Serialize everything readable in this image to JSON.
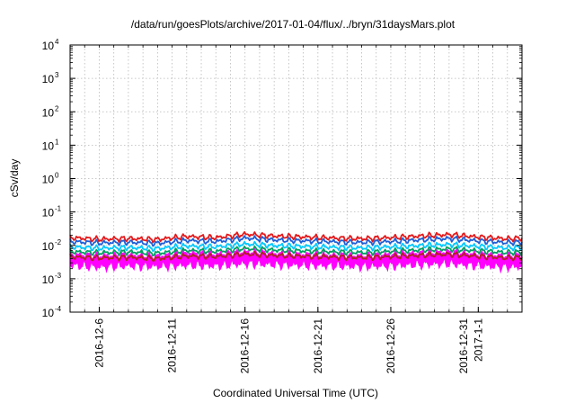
{
  "chart_data": {
    "type": "line",
    "title": "/data/run/goesPlots/archive/2017-01-04/flux/../bryn/31daysMars.plot",
    "xlabel": "Coordinated Universal Time (UTC)",
    "ylabel": "cSv/day",
    "yscale": "log",
    "ylim": [
      0.0001,
      10000
    ],
    "xlim": [
      "2016-12-04T00:00",
      "2017-01-04T00:00"
    ],
    "y_ticks": [
      {
        "base": "10",
        "exp": "-4"
      },
      {
        "base": "10",
        "exp": "-3"
      },
      {
        "base": "10",
        "exp": "-2"
      },
      {
        "base": "10",
        "exp": "-1"
      },
      {
        "base": "10",
        "exp": "0"
      },
      {
        "base": "10",
        "exp": "1"
      },
      {
        "base": "10",
        "exp": "2"
      },
      {
        "base": "10",
        "exp": "3"
      },
      {
        "base": "10",
        "exp": "4"
      }
    ],
    "x_ticks": [
      {
        "label": "2016-12-6",
        "date": "2016-12-06"
      },
      {
        "label": "2016-12-11",
        "date": "2016-12-11"
      },
      {
        "label": "2016-12-16",
        "date": "2016-12-16"
      },
      {
        "label": "2016-12-21",
        "date": "2016-12-21"
      },
      {
        "label": "2016-12-26",
        "date": "2016-12-26"
      },
      {
        "label": "2016-12-31",
        "date": "2016-12-31"
      },
      {
        "label": "2017-1-1",
        "date": "2017-01-01"
      }
    ],
    "grid": true,
    "legend": "none",
    "series": [
      {
        "color": "#ff00ff",
        "fill_band": true,
        "x": [
          "2016-12-04",
          "2016-12-06",
          "2016-12-08",
          "2016-12-10",
          "2016-12-12",
          "2016-12-14",
          "2016-12-16",
          "2016-12-18",
          "2016-12-20",
          "2016-12-22",
          "2016-12-24",
          "2016-12-26",
          "2016-12-28",
          "2016-12-30",
          "2017-01-01",
          "2017-01-03",
          "2017-01-04"
        ],
        "low": [
          0.0025,
          0.0022,
          0.0024,
          0.0023,
          0.0025,
          0.0024,
          0.0028,
          0.0026,
          0.0025,
          0.0024,
          0.0023,
          0.0024,
          0.0026,
          0.0028,
          0.0024,
          0.0022,
          0.0023
        ],
        "high": [
          0.0055,
          0.005,
          0.0052,
          0.0048,
          0.006,
          0.0055,
          0.0065,
          0.0058,
          0.0055,
          0.0052,
          0.005,
          0.0055,
          0.006,
          0.0065,
          0.0055,
          0.005,
          0.0052
        ]
      },
      {
        "color": "#b22222",
        "x": [
          "2016-12-04",
          "2016-12-06",
          "2016-12-08",
          "2016-12-10",
          "2016-12-12",
          "2016-12-14",
          "2016-12-16",
          "2016-12-18",
          "2016-12-20",
          "2016-12-22",
          "2016-12-24",
          "2016-12-26",
          "2016-12-28",
          "2016-12-30",
          "2017-01-01",
          "2017-01-03",
          "2017-01-04"
        ],
        "values": [
          0.0045,
          0.0042,
          0.0044,
          0.004,
          0.0048,
          0.0046,
          0.0055,
          0.005,
          0.0047,
          0.0045,
          0.0043,
          0.0046,
          0.005,
          0.0054,
          0.0047,
          0.0042,
          0.0044
        ]
      },
      {
        "color": "#00a060",
        "x": [
          "2016-12-04",
          "2016-12-06",
          "2016-12-08",
          "2016-12-10",
          "2016-12-12",
          "2016-12-14",
          "2016-12-16",
          "2016-12-18",
          "2016-12-20",
          "2016-12-22",
          "2016-12-24",
          "2016-12-26",
          "2016-12-28",
          "2016-12-30",
          "2017-01-01",
          "2017-01-03",
          "2017-01-04"
        ],
        "values": [
          0.0065,
          0.006,
          0.0063,
          0.0058,
          0.007,
          0.0066,
          0.008,
          0.0072,
          0.0068,
          0.0064,
          0.0061,
          0.0066,
          0.0072,
          0.0078,
          0.0068,
          0.0061,
          0.0063
        ]
      },
      {
        "color": "#00c8ff",
        "x": [
          "2016-12-04",
          "2016-12-06",
          "2016-12-08",
          "2016-12-10",
          "2016-12-12",
          "2016-12-14",
          "2016-12-16",
          "2016-12-18",
          "2016-12-20",
          "2016-12-22",
          "2016-12-24",
          "2016-12-26",
          "2016-12-28",
          "2016-12-30",
          "2017-01-01",
          "2017-01-03",
          "2017-01-04"
        ],
        "values": [
          0.009,
          0.0082,
          0.0086,
          0.008,
          0.0096,
          0.009,
          0.011,
          0.0098,
          0.0093,
          0.0088,
          0.0084,
          0.009,
          0.0098,
          0.0106,
          0.0093,
          0.0084,
          0.0087
        ]
      },
      {
        "color": "#1f5fd6",
        "x": [
          "2016-12-04",
          "2016-12-06",
          "2016-12-08",
          "2016-12-10",
          "2016-12-12",
          "2016-12-14",
          "2016-12-16",
          "2016-12-18",
          "2016-12-20",
          "2016-12-22",
          "2016-12-24",
          "2016-12-26",
          "2016-12-28",
          "2016-12-30",
          "2017-01-01",
          "2017-01-03",
          "2017-01-04"
        ],
        "values": [
          0.013,
          0.0118,
          0.0124,
          0.0115,
          0.014,
          0.013,
          0.0165,
          0.0145,
          0.0136,
          0.0128,
          0.0122,
          0.013,
          0.0145,
          0.016,
          0.0136,
          0.0121,
          0.0126
        ]
      },
      {
        "color": "#e41a1c",
        "x": [
          "2016-12-04",
          "2016-12-06",
          "2016-12-08",
          "2016-12-10",
          "2016-12-12",
          "2016-12-14",
          "2016-12-16",
          "2016-12-18",
          "2016-12-20",
          "2016-12-22",
          "2016-12-24",
          "2016-12-26",
          "2016-12-28",
          "2016-12-30",
          "2017-01-01",
          "2017-01-03",
          "2017-01-04"
        ],
        "values": [
          0.017,
          0.0152,
          0.016,
          0.015,
          0.0185,
          0.017,
          0.0215,
          0.019,
          0.0178,
          0.0166,
          0.0158,
          0.017,
          0.019,
          0.021,
          0.0178,
          0.0157,
          0.0164
        ]
      }
    ]
  }
}
